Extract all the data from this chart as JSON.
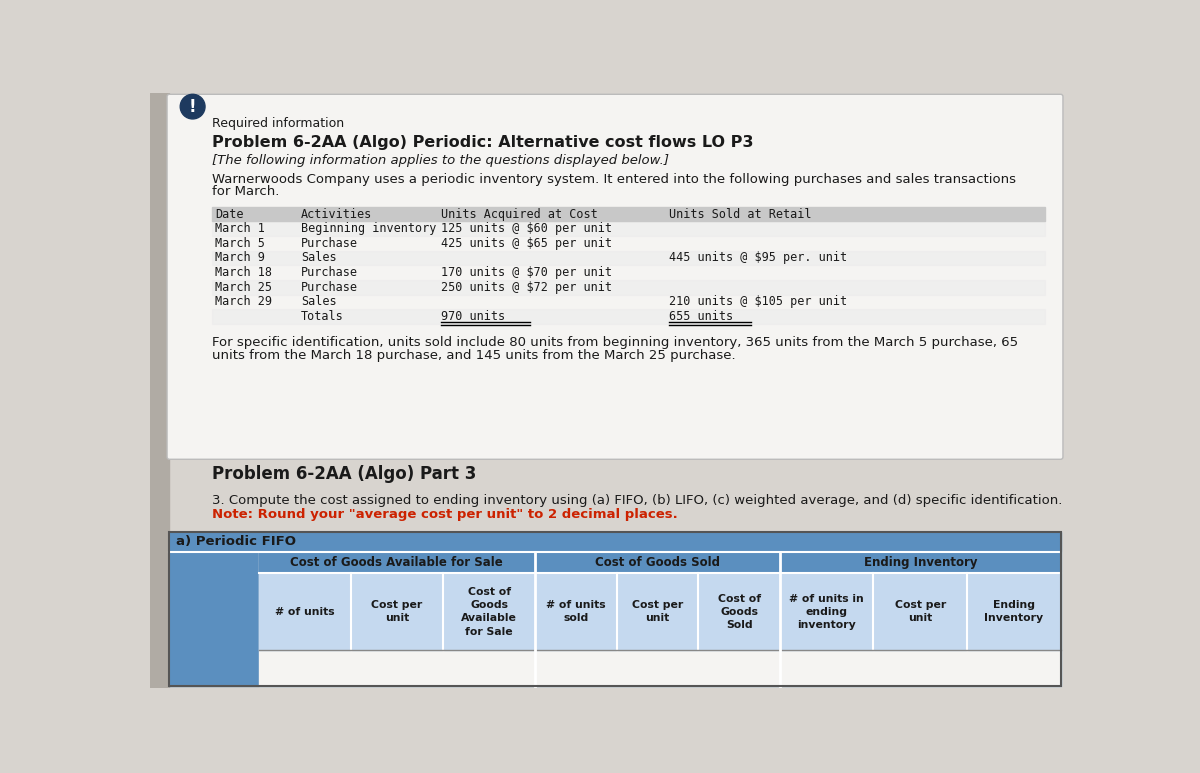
{
  "page_bg": "#d8d4cf",
  "card_bg": "#f5f4f2",
  "white": "#ffffff",
  "dark_navy": "#1e3a5f",
  "light_blue": "#6fa0cc",
  "medium_blue": "#5b8fbf",
  "fifo_bg": "#5b8fbf",
  "fifo_header_bg": "#4a7dae",
  "cell_bg": "#c5d9ef",
  "red_text": "#cc2200",
  "dark_text": "#1a1a1a",
  "table_header_bg": "#c8c8c8",
  "left_panel_bg": "#b0aba4",
  "required_info": "Required information",
  "problem_title": "Problem 6-2AA (Algo) Periodic: Alternative cost flows LO P3",
  "subtitle": "[The following information applies to the questions displayed below.]",
  "table1_rows": [
    [
      "March 1",
      "Beginning inventory",
      "125 units @ $60 per unit",
      ""
    ],
    [
      "March 5",
      "Purchase",
      "425 units @ $65 per unit",
      ""
    ],
    [
      "March 9",
      "Sales",
      "",
      "445 units @ $95 per. unit"
    ],
    [
      "March 18",
      "Purchase",
      "170 units @ $70 per unit",
      ""
    ],
    [
      "March 25",
      "Purchase",
      "250 units @ $72 per unit",
      ""
    ],
    [
      "March 29",
      "Sales",
      "",
      "210 units @ $105 per unit"
    ],
    [
      "",
      "Totals",
      "970 units",
      "655 units"
    ]
  ],
  "specific_line1": "For specific identification, units sold include 80 units from beginning inventory, 365 units from the March 5 purchase, 65",
  "specific_line2": "units from the March 18 purchase, and 145 units from the March 25 purchase.",
  "part3_title": "Problem 6-2AA (Algo) Part 3",
  "question3": "3. Compute the cost assigned to ending inventory using (a) FIFO, (b) LIFO, (c) weighted average, and (d) specific identification.",
  "note_text": "Note: Round your \"average cost per unit\" to 2 decimal places.",
  "fifo_label": "a) Periodic FIFO",
  "sub_labels_g1": [
    "# of units",
    "Cost per\nunit",
    "Cost of\nGoods\nAvailable\nfor Sale"
  ],
  "sub_labels_g2": [
    "# of units\nsold",
    "Cost per\nunit",
    "Cost of\nGoods\nSold"
  ],
  "sub_labels_g3": [
    "# of units in\nending\ninventory",
    "Cost per\nunit",
    "Ending\nInventory"
  ],
  "group_labels": [
    "Cost of Goods Available for Sale",
    "Cost of Goods Sold",
    "Ending Inventory"
  ]
}
